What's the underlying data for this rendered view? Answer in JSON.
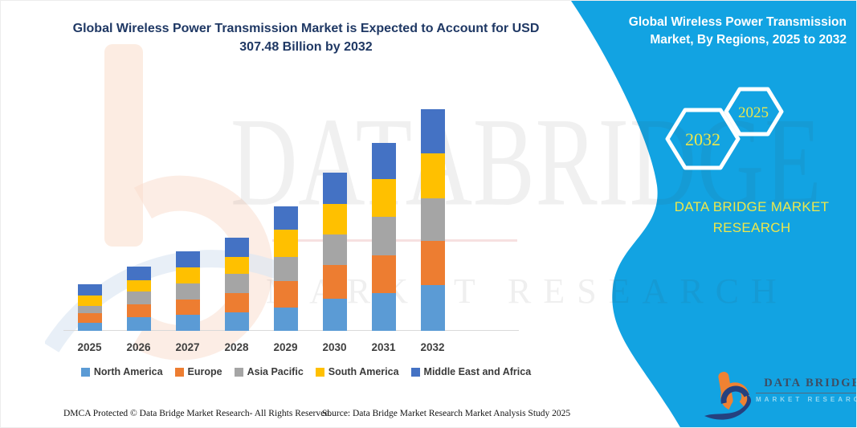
{
  "header": {
    "title_line1": "Global Wireless Power Transmission Market is Expected to Account for USD",
    "title_line2": "307.48 Billion by 2032"
  },
  "side_panel": {
    "title_line1": "Global Wireless Power Transmission",
    "title_line2": "Market, By Regions, 2025 to 2032",
    "panel_color": "#12A3E2",
    "hexagons": [
      {
        "label": "2032"
      },
      {
        "label": "2025"
      }
    ],
    "hexagon_text_color": "#EDE74B",
    "brand_line1": "DATA BRIDGE MARKET",
    "brand_line2": "RESEARCH"
  },
  "chart_data": {
    "type": "bar",
    "stacked": true,
    "unit": "USD Billion (estimated from bar heights; 2032 total labeled as 307.48)",
    "categories": [
      "2025",
      "2026",
      "2027",
      "2028",
      "2029",
      "2030",
      "2031",
      "2032"
    ],
    "series": [
      {
        "name": "North America",
        "color": "#5B9BD5",
        "values": [
          11,
          19,
          22,
          26,
          32,
          45,
          52,
          63
        ]
      },
      {
        "name": "Europe",
        "color": "#ED7D31",
        "values": [
          14,
          18,
          22,
          26,
          37,
          46,
          53,
          62
        ]
      },
      {
        "name": "Asia Pacific",
        "color": "#A5A5A5",
        "values": [
          10,
          17,
          22,
          27,
          34,
          43,
          53,
          59
        ]
      },
      {
        "name": "South America",
        "color": "#FFC000",
        "values": [
          14,
          16,
          22,
          24,
          38,
          42,
          52,
          62
        ]
      },
      {
        "name": "Middle East and Africa",
        "color": "#4472C4",
        "values": [
          15,
          19,
          23,
          27,
          32,
          44,
          51,
          61.48
        ]
      }
    ],
    "totals": [
      64,
      89,
      111,
      130,
      173,
      220,
      261,
      307.48
    ],
    "title": "Global Wireless Power Transmission Market is Expected to Account for USD 307.48 Billion by 2032",
    "xlabel": "",
    "ylabel": "",
    "ylim": [
      0,
      320
    ],
    "grid": false,
    "axis_color": "#D9D9D9",
    "legend_position": "bottom"
  },
  "watermark": {
    "big_text": "DATABRIDGE",
    "sub_text": "MARKET RESEARCH"
  },
  "logo": {
    "name": "DATA BRIDGE",
    "subtitle": "MARKET RESEARCH"
  },
  "footer": {
    "left": "DMCA Protected © Data Bridge Market Research- All Rights Reserved.",
    "right": "Source: Data Bridge Market Research Market Analysis Study 2025"
  }
}
